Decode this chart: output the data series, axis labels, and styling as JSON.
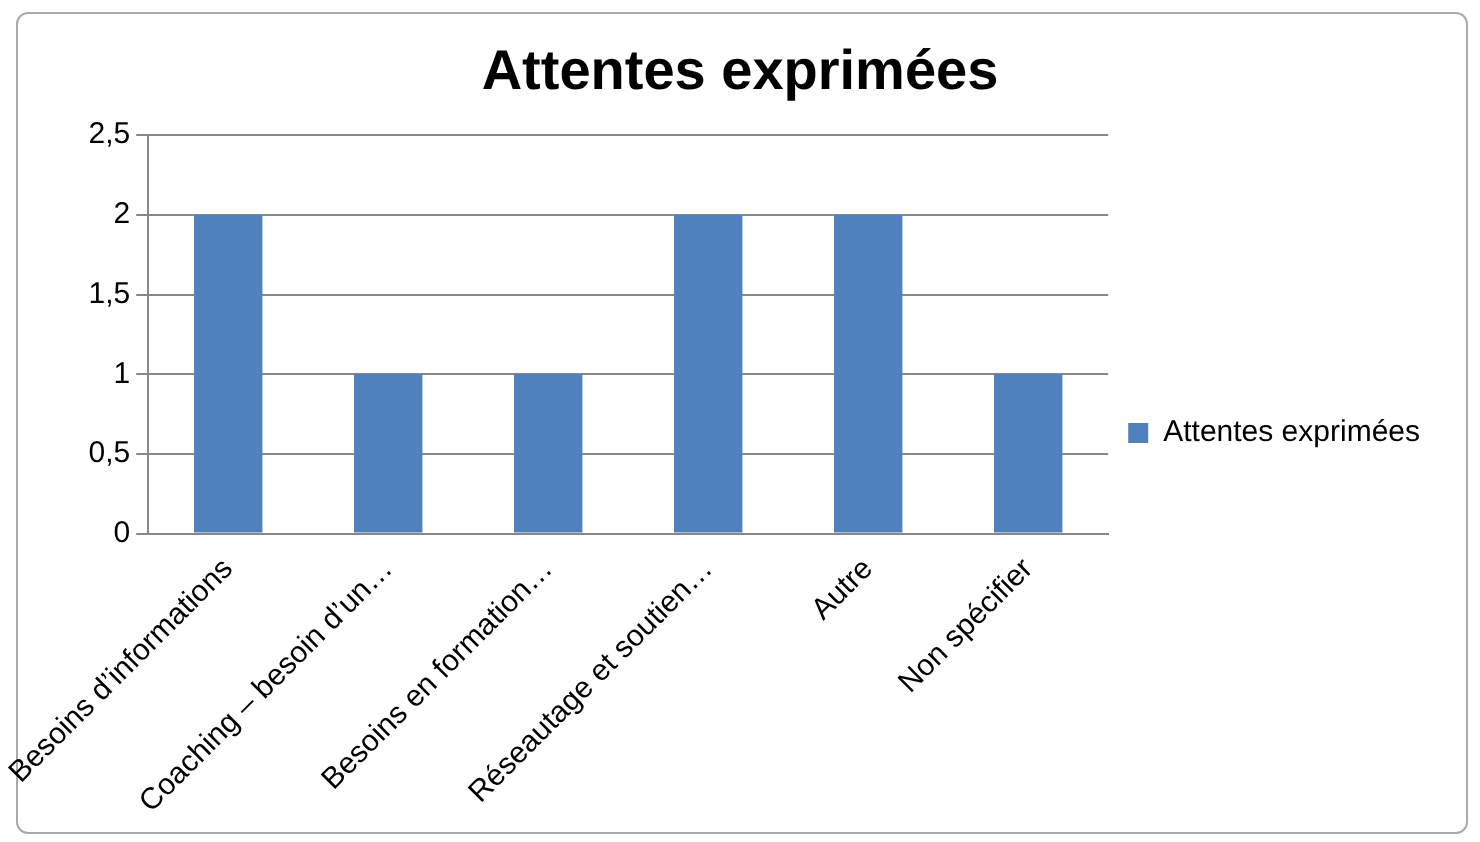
{
  "chart_data": {
    "type": "bar",
    "title": "Attentes exprimées",
    "categories": [
      "Besoins d’informations",
      "Coaching – besoin d’un…",
      "Besoins en formation…",
      "Réseautage et soutien…",
      "Autre",
      "Non spécifier"
    ],
    "series": [
      {
        "name": "Attentes exprimées",
        "color": "#4f81bd",
        "values": [
          2,
          1,
          1,
          2,
          2,
          1
        ]
      }
    ],
    "ylim": [
      0,
      2.5
    ],
    "yticks": [
      0,
      {
        "value": 0.5,
        "label": "0,5"
      },
      1,
      {
        "value": 1.5,
        "label": "1,5"
      },
      2,
      {
        "value": 2.5,
        "label": "2,5"
      }
    ],
    "grid": "y",
    "legend": "right"
  }
}
